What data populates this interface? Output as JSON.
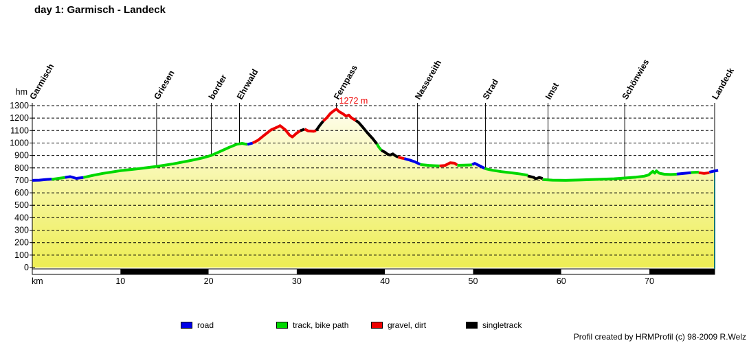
{
  "title": "day 1: Garmisch - Landeck",
  "footer": "Profil created by HRMProfil (c) 98-2009 R.Welz",
  "legend": [
    {
      "label": "road",
      "color": "#0000e8"
    },
    {
      "label": "track, bike path",
      "color": "#00d800"
    },
    {
      "label": "gravel, dirt",
      "color": "#ee0000"
    },
    {
      "label": "singletrack",
      "color": "#000000"
    }
  ],
  "chart_data": {
    "type": "area",
    "title": "day 1: Garmisch - Landeck",
    "xlabel": "km",
    "ylabel": "hm",
    "xlim": [
      0,
      77.4
    ],
    "ylim": [
      0,
      1300
    ],
    "xticks": [
      10,
      20,
      30,
      40,
      50,
      60,
      70
    ],
    "yticks": [
      0,
      100,
      200,
      300,
      400,
      500,
      600,
      700,
      800,
      900,
      1000,
      1100,
      1200,
      1300
    ],
    "grid": "dashed-horizontal",
    "fill_gradient_top": "#FFFEF2",
    "fill_gradient_bottom": "#EDED4E",
    "right_border_color": "#007878",
    "scalebar_colors": [
      "#ffffff",
      "#000000"
    ],
    "peak_annotation": {
      "label": "1272 m",
      "km": 34.5,
      "hm": 1272,
      "color": "#ee0000"
    },
    "surface_colors": {
      "road": "#0000e8",
      "track": "#00d800",
      "gravel": "#ee0000",
      "singletrack": "#000000"
    },
    "waypoints": [
      {
        "name": "Garmisch",
        "km": 0,
        "hm": 700
      },
      {
        "name": "Griesen",
        "km": 14.1,
        "hm": 812
      },
      {
        "name": "border",
        "km": 20.3,
        "hm": 900
      },
      {
        "name": "Ehrwald",
        "km": 23.5,
        "hm": 993
      },
      {
        "name": "Fernpass",
        "km": 34.5,
        "hm": 1272
      },
      {
        "name": "Nassereith",
        "km": 43.7,
        "hm": 839
      },
      {
        "name": "Strad",
        "km": 51.4,
        "hm": 793
      },
      {
        "name": "Imst",
        "km": 58.5,
        "hm": 704
      },
      {
        "name": "Schönwies",
        "km": 67.2,
        "hm": 719
      },
      {
        "name": "Landeck",
        "km": 77.4,
        "hm": 776
      }
    ],
    "segments": [
      {
        "surface": "road",
        "points": [
          [
            0,
            700
          ],
          [
            0.8,
            702
          ],
          [
            1.5,
            706
          ],
          [
            2.2,
            710
          ]
        ]
      },
      {
        "surface": "track",
        "points": [
          [
            2.2,
            708
          ],
          [
            3.0,
            716
          ],
          [
            3.7,
            723
          ]
        ]
      },
      {
        "surface": "road",
        "points": [
          [
            3.7,
            723
          ],
          [
            4.3,
            730
          ],
          [
            5.0,
            716
          ],
          [
            5.8,
            723
          ]
        ]
      },
      {
        "surface": "track",
        "points": [
          [
            5.8,
            723
          ],
          [
            7.0,
            742
          ],
          [
            8.0,
            756
          ],
          [
            10.0,
            778
          ],
          [
            12.0,
            793
          ],
          [
            14.1,
            812
          ],
          [
            16.0,
            833
          ],
          [
            18.0,
            860
          ],
          [
            19.2,
            878
          ],
          [
            20.3,
            900
          ],
          [
            21.3,
            932
          ],
          [
            22.3,
            964
          ],
          [
            23.2,
            990
          ],
          [
            23.8,
            997
          ],
          [
            24.4,
            988
          ]
        ]
      },
      {
        "surface": "road",
        "points": [
          [
            24.4,
            988
          ],
          [
            25.0,
            1000
          ]
        ]
      },
      {
        "surface": "gravel",
        "points": [
          [
            25.0,
            1000
          ],
          [
            25.6,
            1022
          ],
          [
            26.3,
            1062
          ],
          [
            27.1,
            1106
          ],
          [
            27.9,
            1131
          ],
          [
            28.1,
            1139
          ],
          [
            28.7,
            1106
          ],
          [
            29.2,
            1062
          ],
          [
            29.5,
            1048
          ],
          [
            30.0,
            1080
          ],
          [
            30.4,
            1099
          ]
        ]
      },
      {
        "surface": "singletrack",
        "points": [
          [
            30.4,
            1099
          ],
          [
            30.9,
            1111
          ]
        ]
      },
      {
        "surface": "gravel",
        "points": [
          [
            30.9,
            1111
          ],
          [
            31.3,
            1097
          ],
          [
            31.9,
            1094
          ],
          [
            32.2,
            1100
          ]
        ]
      },
      {
        "surface": "singletrack",
        "points": [
          [
            32.2,
            1100
          ],
          [
            32.6,
            1140
          ],
          [
            33.0,
            1176
          ]
        ]
      },
      {
        "surface": "gravel",
        "points": [
          [
            33.0,
            1176
          ],
          [
            33.4,
            1202
          ],
          [
            33.8,
            1236
          ],
          [
            34.2,
            1259
          ],
          [
            34.5,
            1272
          ],
          [
            34.8,
            1252
          ],
          [
            35.2,
            1236
          ],
          [
            35.6,
            1216
          ],
          [
            35.9,
            1224
          ],
          [
            36.2,
            1202
          ],
          [
            36.7,
            1181
          ]
        ]
      },
      {
        "surface": "singletrack",
        "points": [
          [
            36.7,
            1181
          ],
          [
            37.0,
            1166
          ],
          [
            37.5,
            1126
          ],
          [
            38.0,
            1083
          ],
          [
            38.6,
            1036
          ],
          [
            39.1,
            992
          ]
        ]
      },
      {
        "surface": "track",
        "points": [
          [
            39.1,
            992
          ],
          [
            39.3,
            968
          ],
          [
            39.6,
            941
          ]
        ]
      },
      {
        "surface": "singletrack",
        "points": [
          [
            39.6,
            941
          ],
          [
            40.0,
            926
          ],
          [
            40.3,
            910
          ],
          [
            40.6,
            903
          ],
          [
            40.9,
            913
          ],
          [
            41.2,
            897
          ],
          [
            41.5,
            887
          ]
        ]
      },
      {
        "surface": "gravel",
        "points": [
          [
            41.5,
            887
          ],
          [
            41.9,
            879
          ],
          [
            42.2,
            875
          ]
        ]
      },
      {
        "surface": "road",
        "points": [
          [
            42.2,
            875
          ],
          [
            42.8,
            863
          ],
          [
            43.4,
            849
          ],
          [
            44.0,
            829
          ]
        ]
      },
      {
        "surface": "track",
        "points": [
          [
            44.0,
            827
          ],
          [
            45.0,
            820
          ],
          [
            46.2,
            816
          ]
        ]
      },
      {
        "surface": "gravel",
        "points": [
          [
            46.2,
            816
          ],
          [
            46.8,
            819
          ],
          [
            47.4,
            841
          ],
          [
            47.9,
            838
          ],
          [
            48.2,
            823
          ]
        ]
      },
      {
        "surface": "track",
        "points": [
          [
            48.2,
            821
          ],
          [
            49.0,
            822
          ],
          [
            49.9,
            824
          ]
        ]
      },
      {
        "surface": "road",
        "points": [
          [
            49.9,
            827
          ],
          [
            50.2,
            837
          ],
          [
            50.6,
            822
          ],
          [
            51.3,
            797
          ]
        ]
      },
      {
        "surface": "track",
        "points": [
          [
            51.3,
            795
          ],
          [
            52.2,
            781
          ],
          [
            53.2,
            770
          ],
          [
            54.4,
            760
          ],
          [
            55.4,
            751
          ],
          [
            56.2,
            741
          ]
        ]
      },
      {
        "surface": "singletrack",
        "points": [
          [
            56.2,
            736
          ],
          [
            56.9,
            723
          ],
          [
            57.1,
            712
          ],
          [
            57.5,
            723
          ],
          [
            57.9,
            715
          ]
        ]
      },
      {
        "surface": "track",
        "points": [
          [
            57.9,
            707
          ],
          [
            59.0,
            702
          ],
          [
            60.5,
            700
          ],
          [
            62.0,
            703
          ],
          [
            64.0,
            708
          ],
          [
            66.0,
            713
          ],
          [
            67.2,
            719
          ],
          [
            68.5,
            726
          ],
          [
            69.4,
            734
          ],
          [
            69.9,
            743
          ],
          [
            70.2,
            761
          ],
          [
            70.4,
            773
          ],
          [
            70.6,
            758
          ],
          [
            70.8,
            776
          ],
          [
            71.1,
            758
          ],
          [
            71.7,
            749
          ],
          [
            72.4,
            747
          ],
          [
            73.1,
            749
          ]
        ]
      },
      {
        "surface": "road",
        "points": [
          [
            73.1,
            751
          ],
          [
            74.0,
            757
          ],
          [
            74.7,
            761
          ]
        ]
      },
      {
        "surface": "track",
        "points": [
          [
            74.7,
            763
          ],
          [
            75.6,
            766
          ]
        ]
      },
      {
        "surface": "gravel",
        "points": [
          [
            75.6,
            762
          ],
          [
            76.2,
            756
          ],
          [
            76.8,
            761
          ]
        ]
      },
      {
        "surface": "road",
        "points": [
          [
            76.8,
            766
          ],
          [
            77.3,
            774
          ],
          [
            77.8,
            780
          ]
        ]
      }
    ]
  }
}
